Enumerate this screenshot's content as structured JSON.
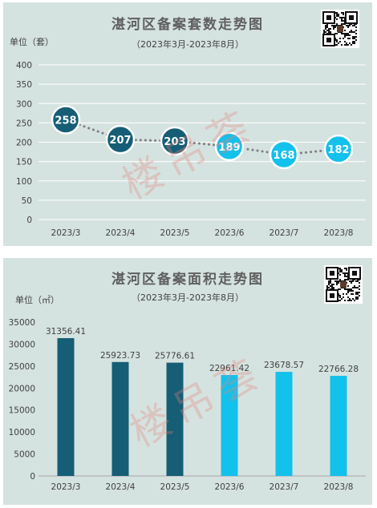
{
  "charts": [
    {
      "title": "湛河区备案套数走势图",
      "subtitle": "（2023年3月-2023年8月）",
      "unit": "单位（套）",
      "watermark": "楼吊荟"
    },
    {
      "title": "湛河区备案面积走势图",
      "subtitle": "（2023年3月-2023年8月）",
      "unit": "单位（㎡）",
      "watermark": "楼吊荟"
    }
  ],
  "colors": {
    "dark": "#155e75",
    "light": "#12c1ec",
    "panel": "#d5e3e0",
    "dots": "#7f7f7f"
  },
  "icons": {
    "qr": "qr-code-icon"
  },
  "chart_data": [
    {
      "type": "line",
      "title": "湛河区备案套数走势图",
      "subtitle": "（2023年3月-2023年8月）",
      "ylabel": "单位（套）",
      "categories": [
        "2023/3",
        "2023/4",
        "2023/5",
        "2023/6",
        "2023/7",
        "2023/8"
      ],
      "values": [
        258,
        207,
        203,
        189,
        168,
        182
      ],
      "value_labels": [
        "258",
        "207",
        "203",
        "189",
        "168",
        "182"
      ],
      "point_colors": [
        "#155e75",
        "#155e75",
        "#155e75",
        "#12c1ec",
        "#12c1ec",
        "#12c1ec"
      ],
      "ylim": [
        0,
        400
      ],
      "yticks": [
        0,
        50,
        100,
        150,
        200,
        250,
        300,
        350,
        400
      ],
      "grid": true,
      "line_style": "dotted"
    },
    {
      "type": "bar",
      "title": "湛河区备案面积走势图",
      "subtitle": "（2023年3月-2023年8月）",
      "ylabel": "单位（㎡）",
      "categories": [
        "2023/3",
        "2023/4",
        "2023/5",
        "2023/6",
        "2023/7",
        "2023/8"
      ],
      "values": [
        31356.41,
        25923.73,
        25776.61,
        22961.42,
        23678.57,
        22766.28
      ],
      "value_labels": [
        "31356.41",
        "25923.73",
        "25776.61",
        "22961.42",
        "23678.57",
        "22766.28"
      ],
      "bar_colors": [
        "#155e75",
        "#155e75",
        "#155e75",
        "#12c1ec",
        "#12c1ec",
        "#12c1ec"
      ],
      "ylim": [
        0,
        35000
      ],
      "yticks": [
        0,
        5000,
        10000,
        15000,
        20000,
        25000,
        30000,
        35000
      ],
      "grid": false
    }
  ]
}
